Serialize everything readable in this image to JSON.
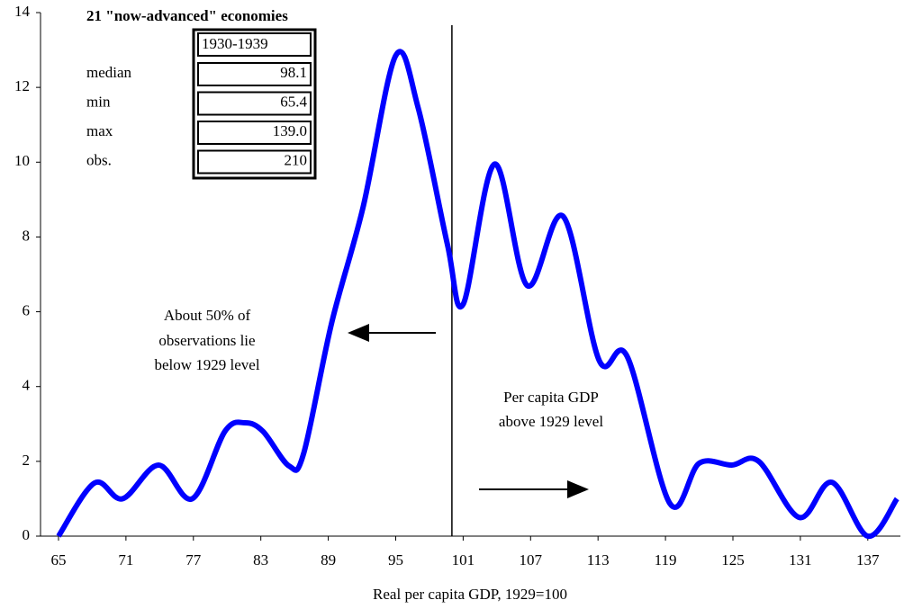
{
  "chart_data": {
    "type": "line",
    "title": "21 \"now-advanced\" economies",
    "period": "1930-1939",
    "stats": [
      {
        "label": "median",
        "value": "98.1"
      },
      {
        "label": "min",
        "value": "65.4"
      },
      {
        "label": "max",
        "value": "139.0"
      },
      {
        "label": "obs.",
        "value": "210"
      }
    ],
    "x_label": "Real per capita GDP, 1929=100",
    "annotations": [
      "About 50% of",
      "observations lie",
      "below 1929 level",
      "Per capita GDP",
      "above 1929 level"
    ],
    "reference_x": 100,
    "x": [
      65,
      68.2,
      70.7,
      73.9,
      76.9,
      79.8,
      81.6,
      83.2,
      85.5,
      86.8,
      89.3,
      92.1,
      95,
      97,
      99.6,
      101,
      103.8,
      106.7,
      109.9,
      113.1,
      115.6,
      119.4,
      122,
      124.9,
      127.3,
      130.9,
      133.8,
      137,
      139.6
    ],
    "series": [
      {
        "color": "#0000ff",
        "values": [
          0,
          1.42,
          1.0,
          1.9,
          1.0,
          2.8,
          3.03,
          2.8,
          1.88,
          2.2,
          5.7,
          8.8,
          12.85,
          11.45,
          7.8,
          6.2,
          9.95,
          6.7,
          8.55,
          4.7,
          4.8,
          0.87,
          1.95,
          1.9,
          2.0,
          0.5,
          1.44,
          0,
          1.0
        ]
      }
    ],
    "xlim": [
      63.4,
      139.9
    ],
    "ylim": [
      0,
      14
    ],
    "xticks": [
      65,
      71,
      77,
      83,
      89,
      95,
      101,
      107,
      113,
      119,
      125,
      131,
      137
    ],
    "yticks": [
      0,
      2,
      4,
      6,
      8,
      10,
      12,
      14
    ],
    "grid": false
  }
}
